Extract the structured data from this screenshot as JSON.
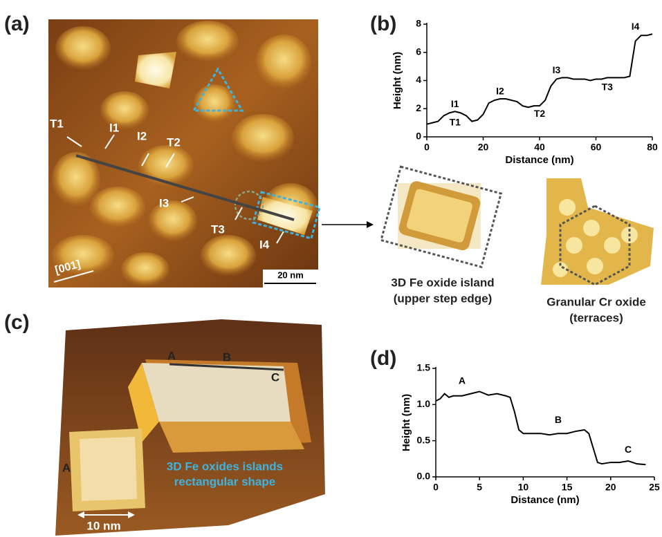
{
  "panel_labels": [
    "(a)",
    "(b)",
    "(c)",
    "(d)"
  ],
  "panel_a": {
    "labels": [
      "T1",
      "I1",
      "I2",
      "T2",
      "I3",
      "T3",
      "I4"
    ],
    "direction": "[001]",
    "scale_bar": "20 nm"
  },
  "insets": {
    "island_caption": [
      "3D Fe oxide island",
      "(upper step edge)"
    ],
    "cr_caption": [
      "Granular Cr oxide",
      "(terraces)"
    ]
  },
  "panel_c": {
    "labels": [
      "A",
      "B",
      "C",
      "A"
    ],
    "annotation": [
      "3D Fe oxides islands",
      "rectangular shape"
    ],
    "scale_bar": "10 nm"
  },
  "chart_data": [
    {
      "type": "line",
      "xlabel": "Distance (nm)",
      "ylabel": "Height (nm)",
      "color": "#000000",
      "x": [
        0,
        2,
        4,
        6,
        8,
        10,
        12,
        14,
        16,
        18,
        20,
        22,
        24,
        26,
        28,
        30,
        32,
        34,
        36,
        38,
        40,
        42,
        44,
        46,
        48,
        50,
        52,
        54,
        56,
        58,
        60,
        62,
        64,
        66,
        68,
        70,
        72,
        74,
        76,
        78,
        80
      ],
      "values": [
        0.9,
        1.0,
        1.1,
        1.5,
        1.7,
        1.8,
        1.7,
        1.5,
        1.1,
        1.2,
        1.6,
        2.4,
        2.6,
        2.7,
        2.7,
        2.6,
        2.5,
        2.2,
        2.1,
        2.2,
        2.2,
        2.6,
        3.6,
        4.1,
        4.2,
        4.2,
        4.1,
        4.1,
        4.1,
        4.0,
        4.1,
        4.1,
        4.2,
        4.2,
        4.2,
        4.2,
        4.3,
        6.8,
        7.2,
        7.2,
        7.3
      ],
      "xlim": [
        0,
        80
      ],
      "xticks": [
        0,
        20,
        40,
        60,
        80
      ],
      "ylim": [
        0,
        8
      ],
      "yticks": [
        0,
        2,
        4,
        6,
        8
      ],
      "annotations": [
        "I1",
        "T1",
        "I2",
        "T2",
        "I3",
        "T3",
        "I4"
      ]
    },
    {
      "type": "line",
      "xlabel": "Distance (nm)",
      "ylabel": "Height (nm)",
      "color": "#000000",
      "x": [
        0,
        0.5,
        1,
        1.5,
        2,
        3,
        4,
        5,
        6,
        7,
        8,
        8.5,
        9,
        9.5,
        10,
        11,
        12,
        13,
        14,
        15,
        16,
        17,
        17.5,
        18,
        18.5,
        19,
        20,
        21,
        22,
        22.5,
        23,
        24
      ],
      "values": [
        1.05,
        1.08,
        1.15,
        1.1,
        1.12,
        1.12,
        1.15,
        1.18,
        1.13,
        1.15,
        1.12,
        1.1,
        0.9,
        0.65,
        0.6,
        0.6,
        0.6,
        0.58,
        0.6,
        0.6,
        0.63,
        0.65,
        0.6,
        0.4,
        0.2,
        0.18,
        0.2,
        0.2,
        0.22,
        0.2,
        0.18,
        0.17
      ],
      "xlim": [
        0,
        25
      ],
      "xticks": [
        0,
        5,
        10,
        15,
        20,
        25
      ],
      "ylim": [
        0,
        1.5
      ],
      "yticks": [
        {
          "value": 0,
          "label": "0.0"
        },
        0.5,
        {
          "value": 1,
          "label": "1.0"
        },
        1.5
      ],
      "annotations": [
        "A",
        "B",
        "C"
      ]
    }
  ]
}
